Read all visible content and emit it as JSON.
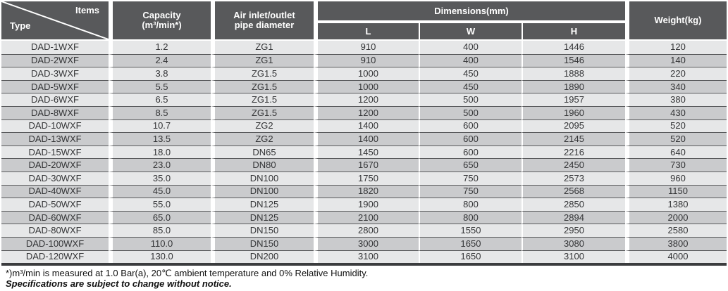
{
  "table": {
    "header": {
      "corner_top_right": "Items",
      "corner_bottom_left": "Type",
      "capacity_line1": "Capacity",
      "capacity_line2": "(m³/min*)",
      "pipe_line1": "Air inlet/outlet",
      "pipe_line2": "pipe diameter",
      "dimensions": "Dimensions(mm)",
      "dim_sub": [
        "L",
        "W",
        "H"
      ],
      "weight": "Weight(kg)"
    },
    "rows": [
      {
        "type": "DAD-1WXF",
        "capacity": "1.2",
        "pipe": "ZG1",
        "l": "910",
        "w": "400",
        "h": "1446",
        "weight": "120"
      },
      {
        "type": "DAD-2WXF",
        "capacity": "2.4",
        "pipe": "ZG1",
        "l": "910",
        "w": "400",
        "h": "1546",
        "weight": "140"
      },
      {
        "type": "DAD-3WXF",
        "capacity": "3.8",
        "pipe": "ZG1.5",
        "l": "1000",
        "w": "450",
        "h": "1888",
        "weight": "220"
      },
      {
        "type": "DAD-5WXF",
        "capacity": "5.5",
        "pipe": "ZG1.5",
        "l": "1000",
        "w": "450",
        "h": "1890",
        "weight": "340"
      },
      {
        "type": "DAD-6WXF",
        "capacity": "6.5",
        "pipe": "ZG1.5",
        "l": "1200",
        "w": "500",
        "h": "1957",
        "weight": "380"
      },
      {
        "type": "DAD-8WXF",
        "capacity": "8.5",
        "pipe": "ZG1.5",
        "l": "1200",
        "w": "500",
        "h": "1960",
        "weight": "430"
      },
      {
        "type": "DAD-10WXF",
        "capacity": "10.7",
        "pipe": "ZG2",
        "l": "1400",
        "w": "600",
        "h": "2095",
        "weight": "520"
      },
      {
        "type": "DAD-13WXF",
        "capacity": "13.5",
        "pipe": "ZG2",
        "l": "1400",
        "w": "600",
        "h": "2145",
        "weight": "520"
      },
      {
        "type": "DAD-15WXF",
        "capacity": "18.0",
        "pipe": "DN65",
        "l": "1450",
        "w": "600",
        "h": "2216",
        "weight": "640"
      },
      {
        "type": "DAD-20WXF",
        "capacity": "23.0",
        "pipe": "DN80",
        "l": "1670",
        "w": "650",
        "h": "2450",
        "weight": "730"
      },
      {
        "type": "DAD-30WXF",
        "capacity": "35.0",
        "pipe": "DN100",
        "l": "1750",
        "w": "750",
        "h": "2573",
        "weight": "960"
      },
      {
        "type": "DAD-40WXF",
        "capacity": "45.0",
        "pipe": "DN100",
        "l": "1820",
        "w": "750",
        "h": "2568",
        "weight": "1150"
      },
      {
        "type": "DAD-50WXF",
        "capacity": "55.0",
        "pipe": "DN125",
        "l": "1900",
        "w": "800",
        "h": "2850",
        "weight": "1380"
      },
      {
        "type": "DAD-60WXF",
        "capacity": "65.0",
        "pipe": "DN125",
        "l": "2100",
        "w": "800",
        "h": "2894",
        "weight": "2000"
      },
      {
        "type": "DAD-80WXF",
        "capacity": "85.0",
        "pipe": "DN150",
        "l": "2800",
        "w": "1550",
        "h": "2950",
        "weight": "2580"
      },
      {
        "type": "DAD-100WXF",
        "capacity": "110.0",
        "pipe": "DN150",
        "l": "3000",
        "w": "1650",
        "h": "3080",
        "weight": "3800"
      },
      {
        "type": "DAD-120WXF",
        "capacity": "130.0",
        "pipe": "DN200",
        "l": "3100",
        "w": "1650",
        "h": "3100",
        "weight": "4000"
      }
    ]
  },
  "footnotes": {
    "measurement": "*)m³/min is measured at 1.0 Bar(a), 20℃ ambient temperature and 0% Relative Humidity.",
    "disclaimer": "Specifications are subject to change without notice."
  },
  "colors": {
    "header_bg": "#58595B",
    "header_text": "#FFFFFF",
    "row_light": "#E6E7E8",
    "row_dark": "#CACBCD",
    "row_separator": "#595A5C",
    "bottom_bar": "#3B3C3E"
  }
}
